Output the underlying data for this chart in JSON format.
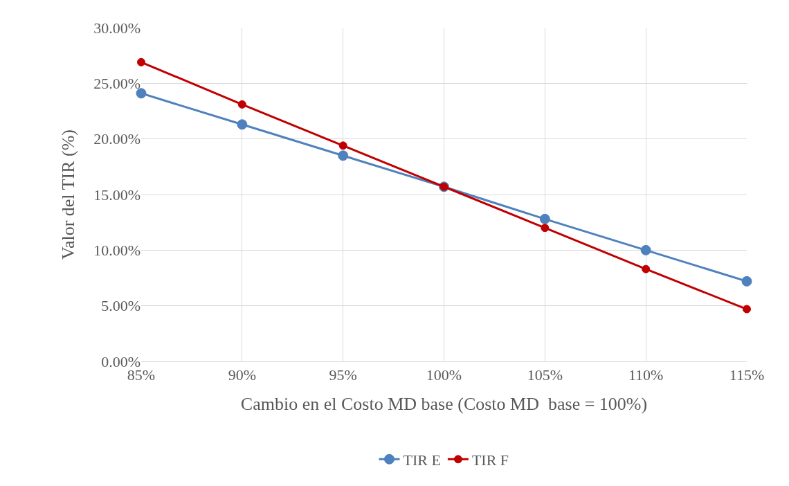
{
  "chart_data": {
    "type": "line",
    "xlabel": "Cambio en el Costo MD base (Costo MD  base = 100%)",
    "ylabel": "Valor del TIR (%)",
    "x": [
      85,
      90,
      95,
      100,
      105,
      110,
      115
    ],
    "series": [
      {
        "name": "TIR E",
        "color": "#4f81bd",
        "values": [
          24.1,
          21.3,
          18.5,
          15.7,
          12.8,
          10.0,
          7.2
        ]
      },
      {
        "name": "TIR F",
        "color": "#c00000",
        "values": [
          26.9,
          23.1,
          19.4,
          15.7,
          12.0,
          8.3,
          4.7
        ]
      }
    ],
    "xlim": [
      85,
      115
    ],
    "xticks": [
      {
        "value": 85,
        "label": "85%"
      },
      {
        "value": 90,
        "label": "90%"
      },
      {
        "value": 95,
        "label": "95%"
      },
      {
        "value": 100,
        "label": "100%"
      },
      {
        "value": 105,
        "label": "105%"
      },
      {
        "value": 110,
        "label": "110%"
      },
      {
        "value": 115,
        "label": "115%"
      }
    ],
    "ylim": [
      0,
      30
    ],
    "yticks": [
      {
        "value": 0,
        "label": "0.00%"
      },
      {
        "value": 5,
        "label": "5.00%"
      },
      {
        "value": 10,
        "label": "10.00%"
      },
      {
        "value": 15,
        "label": "15.00%"
      },
      {
        "value": 20,
        "label": "20.00%"
      },
      {
        "value": 25,
        "label": "25.00%"
      },
      {
        "value": 30,
        "label": "30.00%"
      }
    ],
    "grid": true,
    "legend": "bottom",
    "marker": "circle",
    "line_style": "solid"
  }
}
